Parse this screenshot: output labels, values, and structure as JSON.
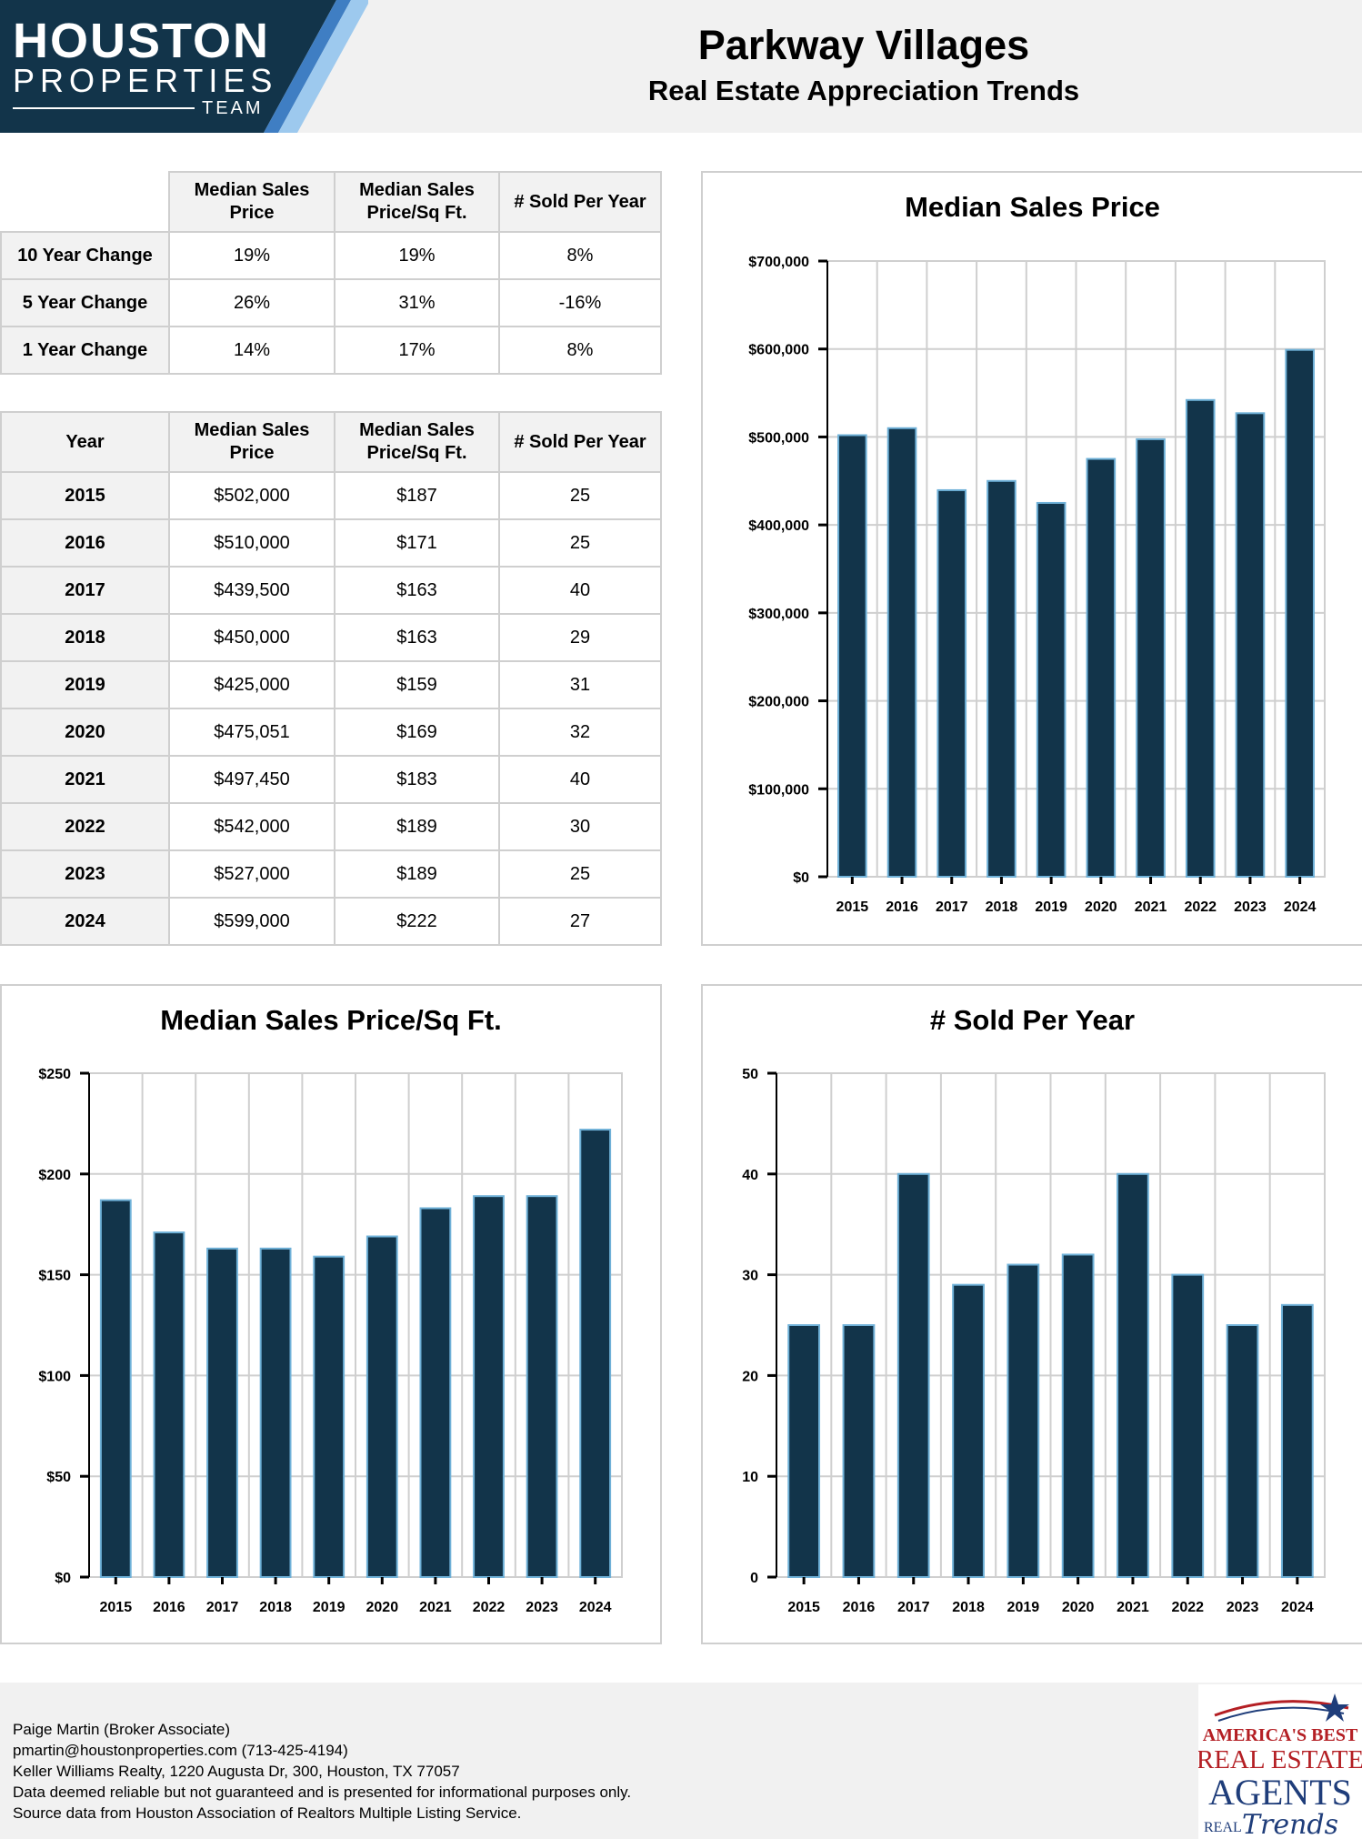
{
  "brand": {
    "line1": "HOUSTON",
    "line2": "PROPERTIES",
    "line3": "TEAM"
  },
  "header": {
    "title": "Parkway Villages",
    "subtitle": "Real Estate Appreciation Trends"
  },
  "summary_table": {
    "headers": [
      "Median Sales Price",
      "Median Sales Price/Sq Ft.",
      "# Sold Per Year"
    ],
    "rows": [
      {
        "label": "10 Year Change",
        "values": [
          "19%",
          "19%",
          "8%"
        ]
      },
      {
        "label": "5 Year Change",
        "values": [
          "26%",
          "31%",
          "-16%"
        ]
      },
      {
        "label": "1 Year Change",
        "values": [
          "14%",
          "17%",
          "8%"
        ]
      }
    ]
  },
  "yearly_table": {
    "headers": [
      "Year",
      "Median Sales Price",
      "Median Sales Price/Sq Ft.",
      "# Sold Per Year"
    ],
    "rows": [
      [
        "2015",
        "$502,000",
        "$187",
        "25"
      ],
      [
        "2016",
        "$510,000",
        "$171",
        "25"
      ],
      [
        "2017",
        "$439,500",
        "$163",
        "40"
      ],
      [
        "2018",
        "$450,000",
        "$163",
        "29"
      ],
      [
        "2019",
        "$425,000",
        "$159",
        "31"
      ],
      [
        "2020",
        "$475,051",
        "$169",
        "32"
      ],
      [
        "2021",
        "$497,450",
        "$183",
        "40"
      ],
      [
        "2022",
        "$542,000",
        "$189",
        "30"
      ],
      [
        "2023",
        "$527,000",
        "$189",
        "25"
      ],
      [
        "2024",
        "$599,000",
        "$222",
        "27"
      ]
    ]
  },
  "chart_data": [
    {
      "type": "bar",
      "title": "Median Sales Price",
      "categories": [
        "2015",
        "2016",
        "2017",
        "2018",
        "2019",
        "2020",
        "2021",
        "2022",
        "2023",
        "2024"
      ],
      "values": [
        502000,
        510000,
        439500,
        450000,
        425000,
        475051,
        497450,
        542000,
        527000,
        599000
      ],
      "ylim": [
        0,
        700000
      ],
      "yticks": [
        0,
        100000,
        200000,
        300000,
        400000,
        500000,
        600000,
        700000
      ],
      "ytick_labels": [
        "$0",
        "$100,000",
        "$200,000",
        "$300,000",
        "$400,000",
        "$500,000",
        "$600,000",
        "$700,000"
      ],
      "grid": true,
      "bar_color": "#12344a",
      "bar_edge_color": "#6fb1d8"
    },
    {
      "type": "bar",
      "title": "Median Sales Price/Sq Ft.",
      "categories": [
        "2015",
        "2016",
        "2017",
        "2018",
        "2019",
        "2020",
        "2021",
        "2022",
        "2023",
        "2024"
      ],
      "values": [
        187,
        171,
        163,
        163,
        159,
        169,
        183,
        189,
        189,
        222
      ],
      "ylim": [
        0,
        250
      ],
      "yticks": [
        0,
        50,
        100,
        150,
        200,
        250
      ],
      "ytick_labels": [
        "$0",
        "$50",
        "$100",
        "$150",
        "$200",
        "$250"
      ],
      "grid": true,
      "bar_color": "#12344a",
      "bar_edge_color": "#6fb1d8"
    },
    {
      "type": "bar",
      "title": "# Sold Per Year",
      "categories": [
        "2015",
        "2016",
        "2017",
        "2018",
        "2019",
        "2020",
        "2021",
        "2022",
        "2023",
        "2024"
      ],
      "values": [
        25,
        25,
        40,
        29,
        31,
        32,
        40,
        30,
        25,
        27
      ],
      "ylim": [
        0,
        50
      ],
      "yticks": [
        0,
        10,
        20,
        30,
        40,
        50
      ],
      "ytick_labels": [
        "0",
        "10",
        "20",
        "30",
        "40",
        "50"
      ],
      "grid": true,
      "bar_color": "#12344a",
      "bar_edge_color": "#6fb1d8"
    }
  ],
  "footer": {
    "lines": [
      "Paige Martin (Broker Associate)",
      "pmartin@houstonproperties.com (713-425-4194)",
      "Keller Williams Realty, 1220 Augusta Dr, 300, Houston, TX 77057",
      "Data deemed reliable but not guaranteed and is presented for informational purposes only.",
      "Source data from Houston Association of Realtors Multiple Listing Service."
    ]
  },
  "badge": {
    "line1": "AMERICA'S BEST",
    "line2": "REAL ESTATE",
    "line3": "AGENTS",
    "line4": "REAL",
    "line5": "Trends"
  },
  "colors": {
    "brand_navy": "#12344a",
    "brand_blue": "#3f7ec3",
    "brand_light_blue": "#9dc9ee",
    "badge_red": "#b41f24",
    "badge_navy": "#1f3d7a"
  }
}
